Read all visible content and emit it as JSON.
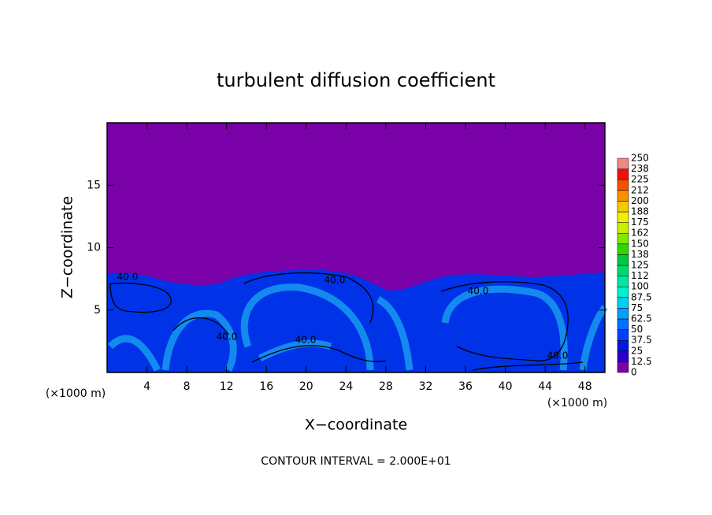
{
  "chart_data": {
    "type": "contour",
    "title": "turbulent diffusion coefficient",
    "x_label": "X−coordinate",
    "y_label": "Z−coordinate",
    "x_unit": "(×1000 m)",
    "x_unit_right": "(×1000 m)",
    "note": "CONTOUR INTERVAL = 2.000E+01",
    "xlim": [
      0,
      50
    ],
    "ylim": [
      0,
      20
    ],
    "xticks": [
      4,
      8,
      12,
      16,
      20,
      24,
      28,
      32,
      36,
      40,
      44,
      48
    ],
    "yticks": [
      5,
      10,
      15
    ],
    "contour_labels": [
      "40.0",
      "40.0",
      "40.0",
      "40.0",
      "40.0",
      "40.0"
    ],
    "colorbar": {
      "levels": [
        0,
        12.5,
        25,
        37.5,
        50,
        62.5,
        75,
        87.5,
        100,
        {
          "value": 112.5,
          "label": "112"
        },
        125,
        {
          "value": 137.5,
          "label": "138"
        },
        150,
        {
          "value": 162.5,
          "label": "162"
        },
        175,
        {
          "value": 187.5,
          "label": "188"
        },
        200,
        {
          "value": 212.5,
          "label": "212"
        },
        225,
        {
          "value": 237.5,
          "label": "238"
        },
        250
      ],
      "colors": [
        "#7a00a8",
        "#2a00c8",
        "#0018e0",
        "#0040f8",
        "#0070ff",
        "#00a0ff",
        "#00d0f0",
        "#00f0d0",
        "#00e8a0",
        "#00d870",
        "#00c840",
        "#30d800",
        "#80e800",
        "#c8f000",
        "#f0f000",
        "#f8c800",
        "#f89000",
        "#f85000",
        "#f01010",
        "#f08888"
      ]
    }
  }
}
